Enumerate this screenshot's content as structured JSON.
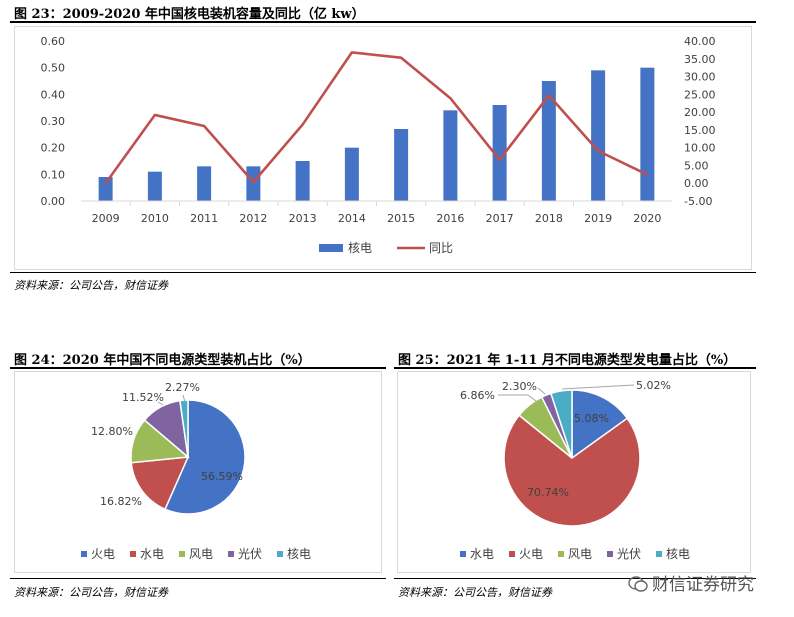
{
  "figures": {
    "fig23": {
      "title": "图 23：2009-2020 年中国核电装机容量及同比（亿 kw）",
      "source": "资料来源：公司公告，财信证券"
    },
    "fig24": {
      "title": "图 24：2020 年中国不同电源类型装机占比（%）",
      "source": "资料来源：公司公告，财信证券"
    },
    "fig25": {
      "title": "图 25：2021 年 1-11 月不同电源类型发电量占比（%）",
      "source": "资料来源：公司公告，财信证券"
    }
  },
  "watermark": {
    "text": "财信证券研究"
  },
  "chart_data": [
    {
      "type": "bar",
      "title": "",
      "categories": [
        "2009",
        "2010",
        "2011",
        "2012",
        "2013",
        "2014",
        "2015",
        "2016",
        "2017",
        "2018",
        "2019",
        "2020"
      ],
      "series": [
        {
          "name": "核电",
          "type": "bar",
          "axis": "left",
          "color": "#4472C4",
          "values": [
            0.09,
            0.11,
            0.13,
            0.13,
            0.15,
            0.2,
            0.27,
            0.34,
            0.36,
            0.45,
            0.49,
            0.5
          ]
        },
        {
          "name": "同比",
          "type": "line",
          "axis": "right",
          "color": "#C0504D",
          "values": [
            0.0,
            19.2,
            16.1,
            0.3,
            16.5,
            36.8,
            35.3,
            23.9,
            6.6,
            24.7,
            9.1,
            2.4
          ]
        }
      ],
      "y_left": {
        "ylim": [
          0,
          0.6
        ],
        "ticks": [
          "0.00",
          "0.10",
          "0.20",
          "0.30",
          "0.40",
          "0.50",
          "0.60"
        ]
      },
      "y_right": {
        "ylim": [
          -5,
          40
        ],
        "ticks": [
          "-5.00",
          "0.00",
          "5.00",
          "10.00",
          "15.00",
          "20.00",
          "25.00",
          "30.00",
          "35.00",
          "40.00"
        ]
      },
      "legend": "bottom"
    },
    {
      "type": "pie",
      "title": "",
      "categories": [
        "火电",
        "水电",
        "风电",
        "光伏",
        "核电"
      ],
      "values": [
        56.59,
        16.82,
        12.8,
        11.52,
        2.27
      ],
      "labels": [
        "56.59%",
        "16.82%",
        "12.80%",
        "11.52%",
        "2.27%"
      ],
      "colors": [
        "#4472C4",
        "#C0504D",
        "#9BBB59",
        "#8064A2",
        "#4BACC6"
      ],
      "legend": "bottom"
    },
    {
      "type": "pie",
      "title": "",
      "categories": [
        "水电",
        "火电",
        "风电",
        "光伏",
        "核电"
      ],
      "values": [
        15.08,
        70.74,
        6.86,
        2.3,
        5.02
      ],
      "labels": [
        "15.08%",
        "70.74%",
        "6.86%",
        "2.30%",
        "5.02%"
      ],
      "colors": [
        "#4472C4",
        "#C0504D",
        "#9BBB59",
        "#8064A2",
        "#4BACC6"
      ],
      "legend": "bottom"
    }
  ]
}
